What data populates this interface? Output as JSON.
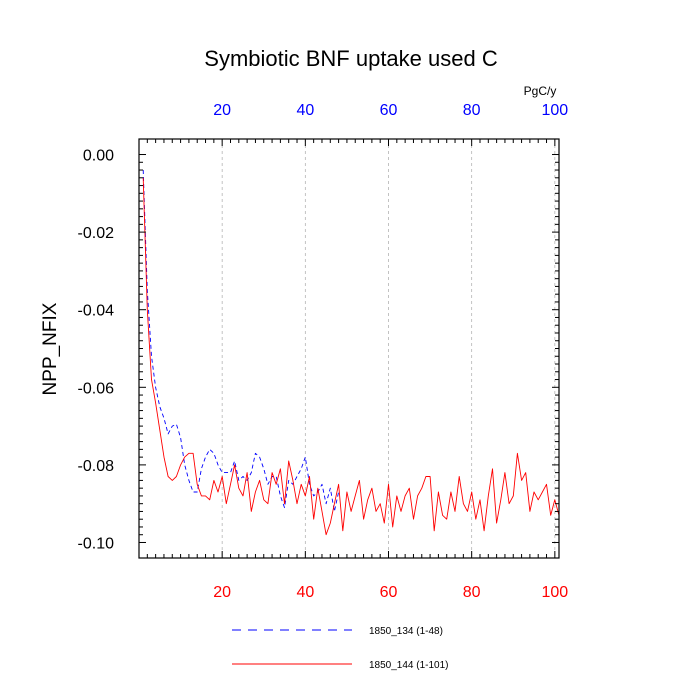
{
  "chart_data": {
    "type": "line",
    "title": "Symbiotic BNF uptake used C",
    "ylabel": "NPP_NFIX",
    "top_axis_unit": "PgC/y",
    "xlim": [
      0,
      101
    ],
    "ylim": [
      -0.104,
      0.004
    ],
    "xticks": [
      20,
      40,
      60,
      80,
      100
    ],
    "yticks": [
      0.0,
      -0.02,
      -0.04,
      -0.06,
      -0.08,
      -0.1
    ],
    "ytick_labels": [
      "0.00",
      "-0.02",
      "-0.04",
      "-0.06",
      "-0.08",
      "-0.10"
    ],
    "grid": "vertical dashed at x ticks",
    "bottom_axis_color": "#ff0000",
    "top_axis_color": "#0000ff",
    "series": [
      {
        "name": "1850_134 (1-48)",
        "color": "#0000ff",
        "dash": "dashed",
        "x": [
          1,
          2,
          3,
          4,
          5,
          6,
          7,
          8,
          9,
          10,
          11,
          12,
          13,
          14,
          15,
          16,
          17,
          18,
          19,
          20,
          21,
          22,
          23,
          24,
          25,
          26,
          27,
          28,
          29,
          30,
          31,
          32,
          33,
          34,
          35,
          36,
          37,
          38,
          39,
          40,
          41,
          42,
          43,
          44,
          45,
          46,
          47,
          48
        ],
        "y": [
          -0.004,
          -0.035,
          -0.052,
          -0.06,
          -0.065,
          -0.068,
          -0.072,
          -0.07,
          -0.0695,
          -0.073,
          -0.08,
          -0.084,
          -0.087,
          -0.087,
          -0.081,
          -0.078,
          -0.076,
          -0.077,
          -0.08,
          -0.082,
          -0.082,
          -0.082,
          -0.079,
          -0.084,
          -0.083,
          -0.084,
          -0.082,
          -0.077,
          -0.078,
          -0.081,
          -0.085,
          -0.083,
          -0.083,
          -0.088,
          -0.091,
          -0.084,
          -0.085,
          -0.083,
          -0.081,
          -0.078,
          -0.085,
          -0.088,
          -0.087,
          -0.085,
          -0.09,
          -0.086,
          -0.092,
          -0.087
        ]
      },
      {
        "name": "1850_144 (1-101)",
        "color": "#ff0000",
        "dash": "solid",
        "x": [
          1,
          2,
          3,
          4,
          5,
          6,
          7,
          8,
          9,
          10,
          11,
          12,
          13,
          14,
          15,
          16,
          17,
          18,
          19,
          20,
          21,
          22,
          23,
          24,
          25,
          26,
          27,
          28,
          29,
          30,
          31,
          32,
          33,
          34,
          35,
          36,
          37,
          38,
          39,
          40,
          41,
          42,
          43,
          44,
          45,
          46,
          47,
          48,
          49,
          50,
          51,
          52,
          53,
          54,
          55,
          56,
          57,
          58,
          59,
          60,
          61,
          62,
          63,
          64,
          65,
          66,
          67,
          68,
          69,
          70,
          71,
          72,
          73,
          74,
          75,
          76,
          77,
          78,
          79,
          80,
          81,
          82,
          83,
          84,
          85,
          86,
          87,
          88,
          89,
          90,
          91,
          92,
          93,
          94,
          95,
          96,
          97,
          98,
          99,
          100,
          101
        ],
        "y": [
          -0.006,
          -0.04,
          -0.058,
          -0.064,
          -0.071,
          -0.078,
          -0.083,
          -0.084,
          -0.083,
          -0.08,
          -0.078,
          -0.077,
          -0.077,
          -0.085,
          -0.088,
          -0.088,
          -0.089,
          -0.084,
          -0.087,
          -0.083,
          -0.09,
          -0.085,
          -0.08,
          -0.086,
          -0.088,
          -0.082,
          -0.092,
          -0.087,
          -0.084,
          -0.089,
          -0.09,
          -0.082,
          -0.085,
          -0.081,
          -0.09,
          -0.079,
          -0.084,
          -0.09,
          -0.085,
          -0.088,
          -0.083,
          -0.094,
          -0.086,
          -0.092,
          -0.098,
          -0.095,
          -0.09,
          -0.085,
          -0.097,
          -0.087,
          -0.092,
          -0.088,
          -0.084,
          -0.094,
          -0.089,
          -0.086,
          -0.092,
          -0.09,
          -0.095,
          -0.085,
          -0.096,
          -0.088,
          -0.092,
          -0.088,
          -0.086,
          -0.094,
          -0.088,
          -0.086,
          -0.083,
          -0.083,
          -0.097,
          -0.087,
          -0.093,
          -0.094,
          -0.087,
          -0.092,
          -0.083,
          -0.09,
          -0.092,
          -0.087,
          -0.094,
          -0.089,
          -0.097,
          -0.088,
          -0.081,
          -0.095,
          -0.089,
          -0.082,
          -0.09,
          -0.088,
          -0.077,
          -0.084,
          -0.082,
          -0.092,
          -0.087,
          -0.089,
          -0.087,
          -0.085,
          -0.093,
          -0.089,
          -0.093
        ]
      }
    ]
  }
}
